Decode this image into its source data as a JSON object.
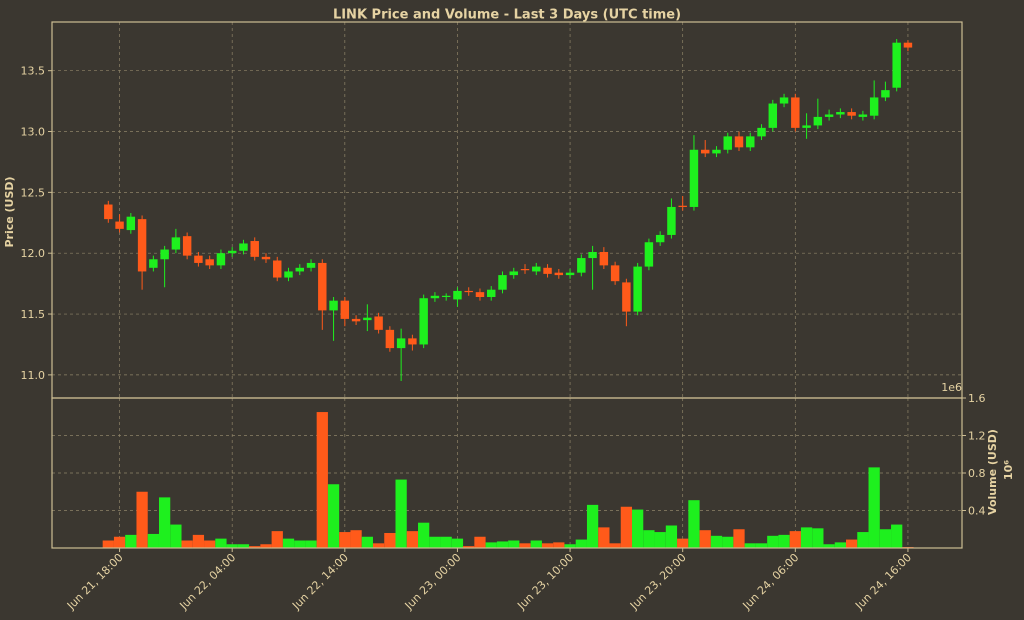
{
  "chart_data": {
    "type": "candlestick",
    "title": "LINK Price and Volume - Last 3 Days (UTC time)",
    "ylabel": "Price (USD)",
    "y2label": "Volume (USD)",
    "y2label_unit": "10⁶",
    "y2_offset": "1e6",
    "up_color": "#1ef01e",
    "down_color": "#ff5a1a",
    "grid": true,
    "xlim": [
      "Jun 21, 12:00",
      "Jun 24, 20:48"
    ],
    "xticks": [
      "Jun 21, 18:00",
      "Jun 22, 04:00",
      "Jun 22, 14:00",
      "Jun 23, 00:00",
      "Jun 23, 10:00",
      "Jun 23, 20:00",
      "Jun 24, 06:00",
      "Jun 24, 16:00"
    ],
    "ylim": [
      10.81,
      13.9
    ],
    "yticks": [
      {
        "value": 11,
        "label": "11.0"
      },
      11.5,
      {
        "value": 12,
        "label": "12.0"
      },
      12.5,
      {
        "value": 13,
        "label": "13.0"
      },
      13.5
    ],
    "y2lim": [
      0,
      1.6
    ],
    "y2ticks": [
      0.4,
      0.8,
      1.2,
      1.6
    ],
    "x": [
      "Jun 21, 17:00",
      "Jun 21, 18:00",
      "Jun 21, 19:00",
      "Jun 21, 20:00",
      "Jun 21, 21:00",
      "Jun 21, 22:00",
      "Jun 21, 23:00",
      "Jun 22, 00:00",
      "Jun 22, 01:00",
      "Jun 22, 02:00",
      "Jun 22, 03:00",
      "Jun 22, 04:00",
      "Jun 22, 05:00",
      "Jun 22, 06:00",
      "Jun 22, 07:00",
      "Jun 22, 08:00",
      "Jun 22, 09:00",
      "Jun 22, 10:00",
      "Jun 22, 11:00",
      "Jun 22, 12:00",
      "Jun 22, 13:00",
      "Jun 22, 14:00",
      "Jun 22, 15:00",
      "Jun 22, 16:00",
      "Jun 22, 17:00",
      "Jun 22, 18:00",
      "Jun 22, 19:00",
      "Jun 22, 20:00",
      "Jun 22, 21:00",
      "Jun 22, 22:00",
      "Jun 22, 23:00",
      "Jun 23, 00:00",
      "Jun 23, 01:00",
      "Jun 23, 02:00",
      "Jun 23, 03:00",
      "Jun 23, 04:00",
      "Jun 23, 05:00",
      "Jun 23, 06:00",
      "Jun 23, 07:00",
      "Jun 23, 08:00",
      "Jun 23, 09:00",
      "Jun 23, 10:00",
      "Jun 23, 11:00",
      "Jun 23, 12:00",
      "Jun 23, 13:00",
      "Jun 23, 14:00",
      "Jun 23, 15:00",
      "Jun 23, 16:00",
      "Jun 23, 17:00",
      "Jun 23, 18:00",
      "Jun 23, 19:00",
      "Jun 23, 20:00",
      "Jun 23, 21:00",
      "Jun 23, 22:00",
      "Jun 23, 23:00",
      "Jun 24, 00:00",
      "Jun 24, 01:00",
      "Jun 24, 02:00",
      "Jun 24, 03:00",
      "Jun 24, 04:00",
      "Jun 24, 05:00",
      "Jun 24, 06:00",
      "Jun 24, 07:00",
      "Jun 24, 08:00",
      "Jun 24, 09:00",
      "Jun 24, 10:00",
      "Jun 24, 11:00",
      "Jun 24, 12:00",
      "Jun 24, 13:00",
      "Jun 24, 14:00",
      "Jun 24, 15:00",
      "Jun 24, 16:00"
    ],
    "open": [
      12.4,
      12.26,
      12.19,
      12.28,
      11.88,
      11.95,
      12.03,
      12.14,
      11.98,
      11.95,
      11.9,
      12.0,
      12.02,
      12.1,
      11.97,
      11.94,
      11.8,
      11.85,
      11.88,
      11.92,
      11.53,
      11.61,
      11.46,
      11.45,
      11.48,
      11.37,
      11.22,
      11.3,
      11.25,
      11.63,
      11.64,
      11.62,
      11.69,
      11.68,
      11.64,
      11.7,
      11.82,
      11.87,
      11.85,
      11.88,
      11.84,
      11.82,
      11.84,
      11.96,
      12.01,
      11.9,
      11.76,
      11.52,
      11.89,
      12.09,
      12.15,
      12.39,
      12.38,
      12.85,
      12.82,
      12.85,
      12.96,
      12.87,
      12.96,
      13.03,
      13.23,
      13.28,
      13.03,
      13.05,
      13.12,
      13.14,
      13.16,
      13.12,
      13.13,
      13.28,
      13.36,
      13.73
    ],
    "high": [
      12.43,
      12.32,
      12.33,
      12.31,
      11.98,
      12.06,
      12.2,
      12.17,
      12.01,
      11.98,
      12.03,
      12.05,
      12.11,
      12.13,
      12.0,
      11.97,
      11.88,
      11.91,
      11.95,
      11.95,
      11.64,
      11.64,
      11.49,
      11.58,
      11.51,
      11.4,
      11.38,
      11.33,
      11.66,
      11.68,
      11.67,
      11.72,
      11.72,
      11.71,
      11.73,
      11.85,
      11.88,
      11.91,
      11.92,
      11.91,
      11.87,
      11.87,
      11.99,
      12.06,
      12.05,
      11.93,
      11.79,
      11.92,
      12.12,
      12.18,
      12.45,
      12.47,
      12.97,
      12.93,
      12.88,
      12.99,
      13.0,
      12.99,
      13.06,
      13.26,
      13.31,
      13.31,
      13.15,
      13.27,
      13.18,
      13.19,
      13.19,
      13.17,
      13.42,
      13.41,
      13.76,
      13.75
    ],
    "low": [
      12.25,
      12.17,
      12.16,
      11.7,
      11.85,
      11.72,
      12.0,
      11.95,
      11.89,
      11.87,
      11.87,
      11.97,
      11.99,
      11.94,
      11.92,
      11.77,
      11.77,
      11.82,
      11.85,
      11.37,
      11.28,
      11.4,
      11.41,
      11.36,
      11.34,
      11.19,
      10.95,
      11.2,
      11.22,
      11.6,
      11.61,
      11.56,
      11.65,
      11.61,
      11.61,
      11.67,
      11.79,
      11.83,
      11.82,
      11.8,
      11.79,
      11.79,
      11.81,
      11.7,
      11.87,
      11.74,
      11.4,
      11.49,
      11.86,
      12.06,
      12.12,
      12.35,
      12.35,
      12.79,
      12.79,
      12.82,
      12.84,
      12.84,
      12.93,
      13.0,
      13.2,
      13.0,
      12.94,
      13.02,
      13.09,
      13.11,
      13.1,
      13.09,
      13.1,
      13.25,
      13.33,
      13.66
    ],
    "close": [
      12.28,
      12.2,
      12.3,
      11.85,
      11.95,
      12.03,
      12.13,
      11.98,
      11.92,
      11.9,
      12.0,
      12.02,
      12.08,
      11.97,
      11.95,
      11.8,
      11.85,
      11.88,
      11.92,
      11.53,
      11.61,
      11.46,
      11.44,
      11.47,
      11.37,
      11.22,
      11.3,
      11.25,
      11.63,
      11.65,
      11.65,
      11.69,
      11.68,
      11.64,
      11.7,
      11.82,
      11.85,
      11.86,
      11.89,
      11.83,
      11.82,
      11.84,
      11.96,
      12.01,
      11.9,
      11.77,
      11.52,
      11.89,
      12.09,
      12.15,
      12.38,
      12.38,
      12.85,
      12.82,
      12.85,
      12.96,
      12.87,
      12.96,
      13.03,
      13.23,
      13.28,
      13.03,
      13.05,
      13.12,
      13.14,
      13.16,
      13.13,
      13.14,
      13.28,
      13.34,
      13.73,
      13.69
    ],
    "volume": [
      0.08,
      0.12,
      0.14,
      0.6,
      0.15,
      0.54,
      0.25,
      0.08,
      0.14,
      0.08,
      0.1,
      0.04,
      0.04,
      0.02,
      0.04,
      0.18,
      0.1,
      0.08,
      0.08,
      1.45,
      0.68,
      0.17,
      0.19,
      0.12,
      0.05,
      0.16,
      0.73,
      0.18,
      0.27,
      0.12,
      0.12,
      0.1,
      0.02,
      0.12,
      0.06,
      0.07,
      0.08,
      0.05,
      0.08,
      0.05,
      0.06,
      0.04,
      0.09,
      0.46,
      0.22,
      0.05,
      0.44,
      0.41,
      0.19,
      0.17,
      0.24,
      0.1,
      0.51,
      0.19,
      0.13,
      0.12,
      0.2,
      0.05,
      0.05,
      0.13,
      0.14,
      0.18,
      0.22,
      0.21,
      0.04,
      0.06,
      0.09,
      0.17,
      0.86,
      0.2,
      0.25,
      0.01
    ]
  }
}
